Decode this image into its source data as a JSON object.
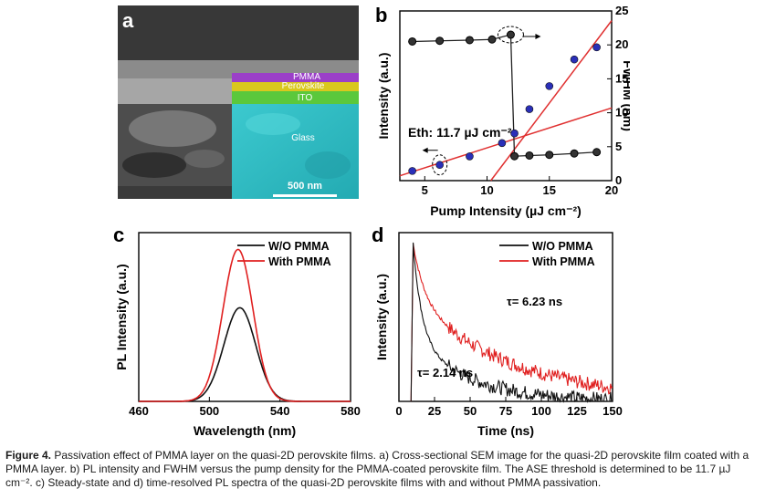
{
  "panel_a": {
    "label": "a",
    "layers": [
      "PMMA",
      "Perovskite",
      "ITO",
      "Glass"
    ],
    "scale_bar": "500 nm",
    "colors": {
      "pmma": "#9b3fc8",
      "perovskite": "#d9c81e",
      "ito": "#5bc83c",
      "glass": "#2fc6cc"
    }
  },
  "panel_b": {
    "label": "b"
  },
  "panel_c": {
    "label": "c"
  },
  "panel_d": {
    "label": "d"
  },
  "caption": {
    "figure_label": "Figure 4.",
    "text": "Passivation effect of PMMA layer on the quasi-2D perovskite films. a) Cross-sectional SEM image for the quasi-2D perovskite film coated with a PMMA layer. b) PL intensity and FWHM versus the pump density for the PMMA-coated perovskite film. The ASE threshold is determined to be 11.7 µJ cm⁻². c) Steady-state and d) time-resolved PL spectra of the quasi-2D perovskite films with and without PMMA passivation."
  },
  "chart_data": [
    {
      "type": "scatter",
      "panel": "b",
      "xlabel": "Pump Intensity (µJ cm⁻²)",
      "ylabel": "Intensity (a.u.)",
      "y2label": "FWHM (nm)",
      "xlim": [
        3,
        20
      ],
      "xticks": [
        "5",
        "10",
        "15",
        "20"
      ],
      "y2lim": [
        0,
        25
      ],
      "y2ticks": [
        "0",
        "5",
        "10",
        "15",
        "20",
        "25"
      ],
      "annotation": "Eth: 11.7 µJ cm⁻²",
      "threshold": 11.7,
      "colors": {
        "intensity": "#2a2fb8",
        "fit": "#e03030",
        "fwhm": "#222222"
      },
      "series": [
        {
          "axis": "left",
          "marker": "blue-dot",
          "x": [
            4,
            6.2,
            8.6,
            11.2,
            12.2,
            13.4,
            15,
            17,
            18.8
          ],
          "y": [
            0.08,
            0.13,
            0.2,
            0.31,
            0.39,
            0.59,
            0.78,
            1.0,
            1.1
          ]
        },
        {
          "axis": "right",
          "marker": "black-dot",
          "x": [
            4,
            6.2,
            8.6,
            10.4,
            11.9,
            12.2,
            13.4,
            15,
            17,
            18.8
          ],
          "y": [
            20.5,
            20.6,
            20.7,
            20.8,
            21.5,
            3.6,
            3.7,
            3.8,
            4.0,
            4.2
          ]
        }
      ],
      "fits": [
        {
          "x": [
            3,
            20
          ],
          "y": [
            0.04,
            0.6
          ]
        },
        {
          "x": [
            10.3,
            20
          ],
          "y": [
            0,
            1.32
          ]
        }
      ],
      "ylim": [
        0,
        1.4
      ]
    },
    {
      "type": "line",
      "panel": "c",
      "xlabel": "Wavelength (nm)",
      "ylabel": "PL Intensity (a.u.)",
      "xlim": [
        460,
        580
      ],
      "xticks": [
        "460",
        "500",
        "540",
        "580"
      ],
      "ylim": [
        0,
        1.1
      ],
      "series": [
        {
          "name": "W/O PMMA",
          "color": "#111111",
          "peak": 517,
          "amplitude": 0.61,
          "width": 9
        },
        {
          "name": "With PMMA",
          "color": "#e02020",
          "peak": 516,
          "amplitude": 0.99,
          "width": 8.5
        }
      ]
    },
    {
      "type": "line",
      "panel": "d",
      "xlabel": "Time (ns)",
      "ylabel": "Intensity (a.u.)",
      "xlim": [
        0,
        150
      ],
      "xticks": [
        "0",
        "25",
        "50",
        "75",
        "100",
        "125",
        "150"
      ],
      "ylim": [
        0,
        1.05
      ],
      "series": [
        {
          "name": "W/O PMMA",
          "color": "#111111",
          "tau": 2.14,
          "tau_label": "τ= 2.14 ns",
          "onset": 10
        },
        {
          "name": "With PMMA",
          "color": "#e02020",
          "tau": 6.23,
          "tau_label": "τ= 6.23 ns",
          "onset": 10
        }
      ]
    }
  ]
}
